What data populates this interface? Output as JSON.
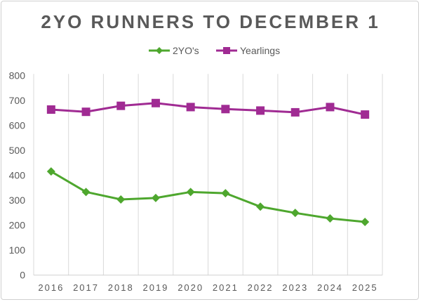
{
  "chart_data": {
    "type": "line",
    "title": "2YO RUNNERS TO DECEMBER 1",
    "xlabel": "",
    "ylabel": "",
    "categories": [
      "2016",
      "2017",
      "2018",
      "2019",
      "2020",
      "2021",
      "2022",
      "2023",
      "2024",
      "2025"
    ],
    "ylim": [
      0,
      800
    ],
    "yticks": [
      "0",
      "100",
      "200",
      "300",
      "400",
      "500",
      "600",
      "700",
      "800"
    ],
    "grid": "vertical",
    "legend": "top",
    "series": [
      {
        "name": "2YO's",
        "color": "#4ea72e",
        "marker": "diamond",
        "values": [
          415,
          333,
          303,
          309,
          333,
          328,
          274,
          249,
          227,
          213
        ]
      },
      {
        "name": "Yearlings",
        "color": "#a02b93",
        "marker": "square",
        "values": [
          663,
          654,
          678,
          689,
          673,
          665,
          659,
          652,
          673,
          643
        ]
      }
    ]
  }
}
